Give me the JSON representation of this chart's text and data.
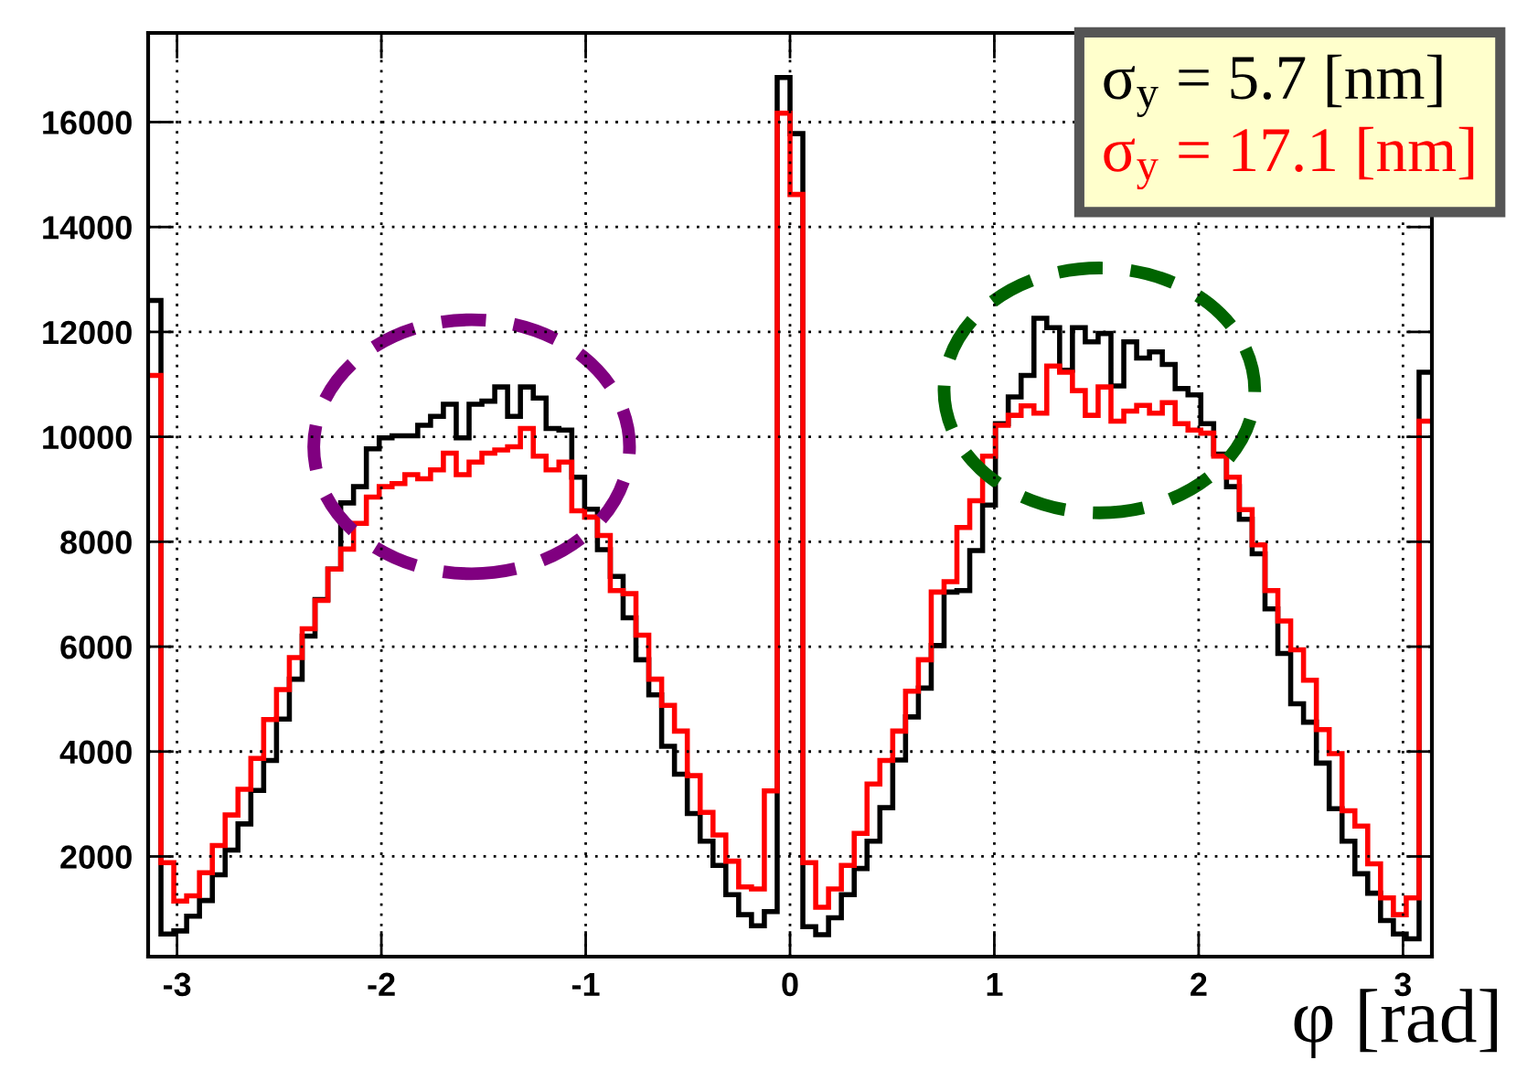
{
  "chart_data": {
    "type": "histogram",
    "xlabel": "φ [rad]",
    "bins": [
      -3.1416,
      -3.0788,
      -3.0159,
      -2.9531,
      -2.8903,
      -2.8274,
      -2.7646,
      -2.7018,
      -2.6389,
      -2.5761,
      -2.5133,
      -2.4504,
      -2.3876,
      -2.3248,
      -2.2619,
      -2.1991,
      -2.1363,
      -2.0735,
      -2.0106,
      -1.9478,
      -1.885,
      -1.8221,
      -1.7593,
      -1.6965,
      -1.6336,
      -1.5708,
      -1.508,
      -1.4451,
      -1.3823,
      -1.3195,
      -1.2566,
      -1.1938,
      -1.131,
      -1.0681,
      -1.0053,
      -0.9425,
      -0.8796,
      -0.8168,
      -0.754,
      -0.6912,
      -0.6283,
      -0.5655,
      -0.5027,
      -0.4398,
      -0.377,
      -0.3142,
      -0.2513,
      -0.1885,
      -0.1257,
      -0.0628,
      0,
      0.0628,
      0.1257,
      0.1885,
      0.2513,
      0.3142,
      0.377,
      0.4398,
      0.5027,
      0.5655,
      0.6283,
      0.6912,
      0.754,
      0.8168,
      0.8796,
      0.9425,
      1.0053,
      1.0681,
      1.131,
      1.1938,
      1.2566,
      1.3195,
      1.3823,
      1.4451,
      1.508,
      1.5708,
      1.6336,
      1.6965,
      1.7593,
      1.8221,
      1.885,
      1.9478,
      2.0106,
      2.0735,
      2.1363,
      2.1991,
      2.2619,
      2.3248,
      2.3876,
      2.4504,
      2.5133,
      2.5761,
      2.6389,
      2.7018,
      2.7646,
      2.8274,
      2.8903,
      2.9531,
      3.0159,
      3.0788,
      3.1416
    ],
    "series": [
      {
        "name": "σ$_{y}$ = 5.7 [nm]",
        "color": "#000000",
        "values": [
          12600,
          520,
          580,
          860,
          1160,
          1650,
          2120,
          2620,
          3260,
          3830,
          4620,
          5380,
          6200,
          6900,
          7480,
          8740,
          9050,
          9770,
          9980,
          10020,
          10020,
          10220,
          10390,
          10620,
          9980,
          10620,
          10680,
          10950,
          10390,
          10950,
          10740,
          10160,
          10130,
          9230,
          8620,
          7850,
          7340,
          6550,
          5750,
          5080,
          4100,
          3570,
          2820,
          2290,
          1830,
          1270,
          890,
          680,
          950,
          16850,
          15780,
          660,
          510,
          830,
          1270,
          1770,
          2290,
          2930,
          3840,
          4660,
          5210,
          6020,
          7040,
          7070,
          7830,
          8700,
          10250,
          10760,
          11170,
          12260,
          12080,
          11270,
          12080,
          11810,
          11970,
          10970,
          11810,
          11500,
          11620,
          11380,
          10920,
          10800,
          10250,
          9670,
          9050,
          8430,
          7770,
          6720,
          5870,
          4910,
          4560,
          3780,
          2910,
          2290,
          1670,
          1300,
          780,
          520,
          430,
          11230
        ]
      },
      {
        "name": "σ$_{y}$ = 17.1 [nm]",
        "color": "#ff0000",
        "values": [
          11170,
          1880,
          1150,
          1250,
          1690,
          2210,
          2790,
          3280,
          3870,
          4610,
          5180,
          5790,
          6340,
          6880,
          7480,
          7860,
          8350,
          8850,
          9050,
          9110,
          9280,
          9200,
          9370,
          9690,
          9280,
          9520,
          9690,
          9750,
          9810,
          10160,
          9630,
          9370,
          9520,
          8590,
          8470,
          8120,
          7070,
          7010,
          6220,
          5380,
          4880,
          4390,
          3540,
          2840,
          2410,
          1910,
          1420,
          1380,
          3250,
          16170,
          14620,
          1880,
          1030,
          1380,
          1830,
          2440,
          3380,
          3830,
          4390,
          5150,
          5750,
          7040,
          7240,
          8270,
          8780,
          9630,
          10220,
          10410,
          10590,
          10450,
          11350,
          11230,
          10880,
          10410,
          10950,
          10300,
          10490,
          10600,
          10450,
          10650,
          10250,
          10130,
          10070,
          9630,
          9230,
          8610,
          7940,
          7070,
          6490,
          5940,
          5360,
          4420,
          3960,
          2870,
          2580,
          1860,
          1210,
          890,
          1210,
          10300
        ]
      }
    ],
    "xlim": [
      -3.1416,
      3.1416
    ],
    "xticks": [
      -3,
      -2,
      -1,
      0,
      1,
      2,
      3
    ],
    "ylim": [
      90,
      17700
    ],
    "yticks": [
      2000,
      4000,
      6000,
      8000,
      10000,
      12000,
      14000,
      16000
    ],
    "grid": true,
    "legend": "top right"
  }
}
